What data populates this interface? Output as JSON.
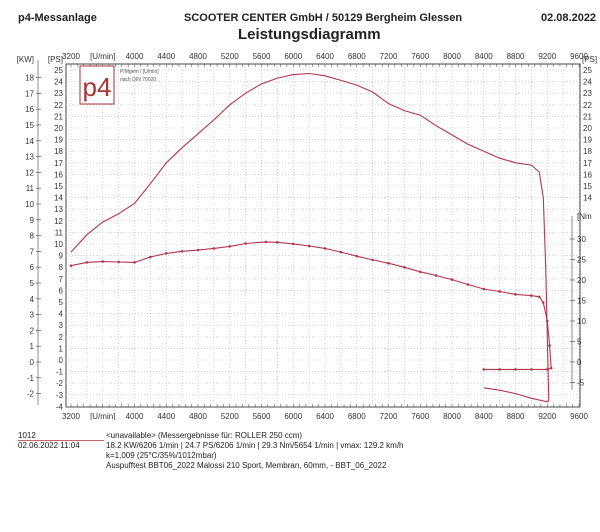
{
  "header": {
    "left": "p4-Messanlage",
    "center": "SCOOTER CENTER GmbH / 50129 Bergheim Glessen",
    "date": "02.08.2022",
    "title": "Leistungsdiagramm"
  },
  "logo": {
    "text": "p4",
    "note1": "P/Mgem / [U/min]",
    "note2": "nach DIN 70020"
  },
  "chart_data": {
    "type": "line",
    "title": "Leistungsdiagramm",
    "xlabel": "[U/min]",
    "x_ticks": [
      3200,
      4000,
      4400,
      4800,
      5200,
      5600,
      6000,
      6400,
      6800,
      7200,
      7600,
      8000,
      8400,
      8800,
      9200,
      9600
    ],
    "xlim": [
      3200,
      9600
    ],
    "axes": {
      "kw": {
        "label": "[KW]",
        "ticks": [
          18,
          17,
          16,
          15,
          14,
          13,
          12,
          11,
          10,
          9,
          8,
          7,
          6,
          5,
          4,
          3,
          2,
          1,
          0,
          -1,
          -2
        ]
      },
      "ps_left": {
        "label": "[PS]",
        "ticks": [
          25,
          24,
          23,
          22,
          21,
          20,
          19,
          18,
          17,
          16,
          15,
          14,
          13,
          12,
          11,
          10,
          9,
          8,
          7,
          6,
          5,
          4,
          3,
          2,
          1,
          0,
          -1,
          -2,
          -3,
          -4
        ],
        "ylim": [
          -4,
          25.5
        ]
      },
      "ps_right": {
        "label": "[PS]",
        "ticks": [
          25,
          24,
          23,
          22,
          21,
          20,
          19,
          18,
          17,
          16,
          15,
          14
        ]
      },
      "nm": {
        "label": "[Nm",
        "ticks": [
          30,
          25,
          20,
          15,
          10,
          5,
          0,
          -5
        ]
      }
    },
    "series": [
      {
        "name": "Leistung (PS)",
        "color": "#b0374f",
        "x": [
          3200,
          3400,
          3600,
          3800,
          4000,
          4200,
          4400,
          4600,
          4800,
          5000,
          5200,
          5400,
          5600,
          5800,
          6000,
          6206,
          6400,
          6600,
          6800,
          7000,
          7200,
          7400,
          7600,
          7800,
          8000,
          8200,
          8400,
          8600,
          8800,
          9000,
          9100,
          9150,
          9180,
          9200,
          9220,
          9200,
          9000,
          8800,
          8600,
          8400
        ],
        "y": [
          9.3,
          10.8,
          11.9,
          12.6,
          13.5,
          15.2,
          17.0,
          18.3,
          19.5,
          20.7,
          22.0,
          23.0,
          23.8,
          24.3,
          24.6,
          24.7,
          24.5,
          24.1,
          23.7,
          23.1,
          22.1,
          21.5,
          21.1,
          20.2,
          19.4,
          18.6,
          18.0,
          17.4,
          17.0,
          16.8,
          16.2,
          14,
          8,
          2,
          -3.5,
          -3.6,
          -3.3,
          -2.9,
          -2.6,
          -2.4
        ]
      },
      {
        "name": "Drehmoment (Nm)",
        "color": "#b0374f",
        "markers": true,
        "x": [
          3200,
          3400,
          3600,
          3800,
          4000,
          4200,
          4400,
          4600,
          4800,
          5000,
          5200,
          5400,
          5654,
          5800,
          6000,
          6200,
          6400,
          6600,
          6800,
          7000,
          7200,
          7400,
          7600,
          7800,
          8000,
          8200,
          8400,
          8600,
          8800,
          9000,
          9100,
          9150,
          9200,
          9230,
          9250,
          9200,
          9000,
          8800,
          8600,
          8400
        ],
        "y": [
          23.5,
          24.3,
          24.5,
          24.4,
          24.3,
          25.6,
          26.5,
          27.0,
          27.3,
          27.7,
          28.2,
          28.9,
          29.3,
          29.2,
          28.8,
          28.3,
          27.7,
          26.8,
          25.8,
          24.9,
          24.1,
          23.1,
          22.0,
          21.1,
          20.1,
          18.9,
          17.8,
          17.2,
          16.5,
          16.2,
          15.9,
          14.5,
          10,
          4,
          -1.5,
          -1.8,
          -1.8,
          -1.8,
          -1.8,
          -1.8
        ]
      }
    ],
    "grid": true,
    "legend": "none"
  },
  "footer": {
    "id": "1012",
    "datetime": "02.06.2022  11:04",
    "line1": "<unavailable> (Messergebnisse für: ROLLER 250 ccm)",
    "line2": "18.2 KW/6206 1/min  |  24.7 PS/6206 1/min  |  29.3 Nm/5654 1/min | vmax: 129.2 km/h",
    "line3": "k=1,009 (25°C/35%/1012mbar)",
    "line4": "Auspufftest BBT06_2022 Malossi 210 Sport, Membran, 60mm, - BBT_06_2022"
  }
}
